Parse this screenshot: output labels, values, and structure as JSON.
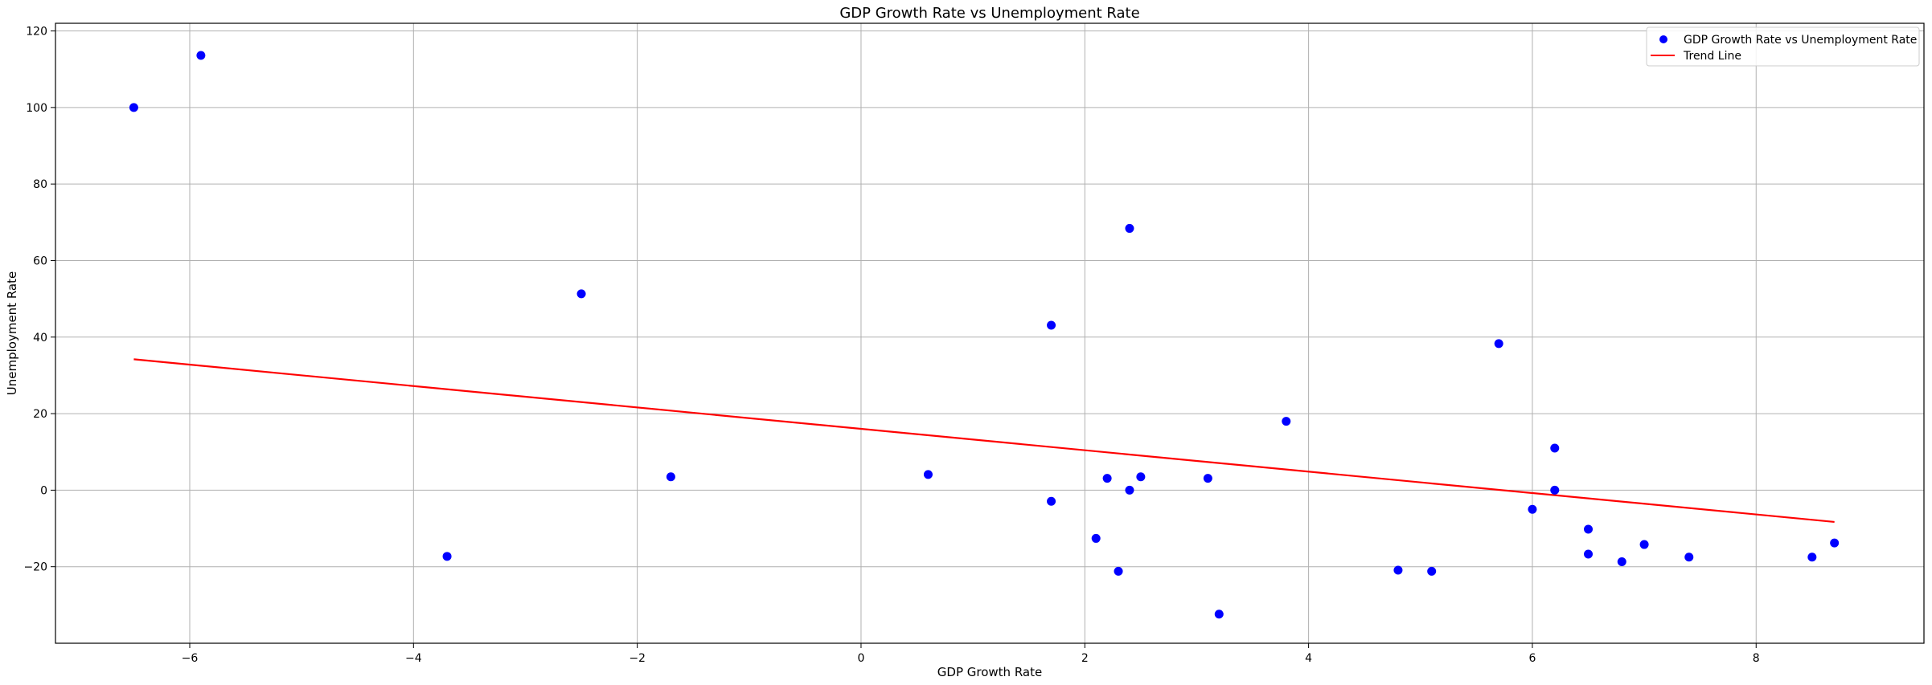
{
  "chart_data": {
    "type": "scatter",
    "title": "GDP Growth Rate vs Unemployment Rate",
    "xlabel": "GDP Growth Rate",
    "ylabel": "Unemployment Rate",
    "xlim": [
      -7.2,
      9.5
    ],
    "ylim": [
      -40,
      122
    ],
    "xticks": [
      -6,
      -4,
      -2,
      0,
      2,
      4,
      6,
      8
    ],
    "yticks": [
      -20,
      0,
      20,
      40,
      60,
      80,
      100,
      120
    ],
    "grid": true,
    "legend_position": "upper right",
    "series": [
      {
        "name": "GDP Growth Rate vs Unemployment Rate",
        "kind": "scatter",
        "color": "#0000ff",
        "points": [
          [
            -6.5,
            100
          ],
          [
            -5.9,
            113.6
          ],
          [
            -3.7,
            -17.3
          ],
          [
            -2.5,
            51.3
          ],
          [
            -1.7,
            3.5
          ],
          [
            0.6,
            4.1
          ],
          [
            1.7,
            43.1
          ],
          [
            1.7,
            -2.9
          ],
          [
            2.1,
            -12.6
          ],
          [
            2.2,
            3.1
          ],
          [
            2.3,
            -21.2
          ],
          [
            2.4,
            68.4
          ],
          [
            2.4,
            0.0
          ],
          [
            2.5,
            3.5
          ],
          [
            3.1,
            3.1
          ],
          [
            3.2,
            -32.4
          ],
          [
            3.8,
            18.0
          ],
          [
            4.8,
            -20.9
          ],
          [
            5.1,
            -21.2
          ],
          [
            5.7,
            38.3
          ],
          [
            6.0,
            -5.0
          ],
          [
            6.2,
            11.0
          ],
          [
            6.2,
            0.0
          ],
          [
            6.5,
            -10.2
          ],
          [
            6.5,
            -16.7
          ],
          [
            6.8,
            -18.7
          ],
          [
            7.0,
            -14.2
          ],
          [
            7.4,
            -17.5
          ],
          [
            8.5,
            -17.5
          ],
          [
            8.7,
            -13.8
          ]
        ]
      },
      {
        "name": "Trend Line",
        "kind": "line",
        "color": "#ff0000",
        "points": [
          [
            -6.5,
            34.2
          ],
          [
            8.7,
            -8.3
          ]
        ]
      }
    ]
  }
}
